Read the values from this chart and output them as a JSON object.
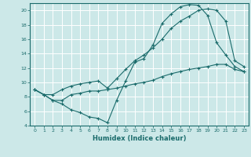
{
  "title": "",
  "xlabel": "Humidex (Indice chaleur)",
  "ylabel": "",
  "background_color": "#cce8e8",
  "grid_color": "#ffffff",
  "line_color": "#1a6b6b",
  "xlim": [
    -0.5,
    23.5
  ],
  "ylim": [
    4,
    21
  ],
  "yticks": [
    4,
    6,
    8,
    10,
    12,
    14,
    16,
    18,
    20
  ],
  "xticks": [
    0,
    1,
    2,
    3,
    4,
    5,
    6,
    7,
    8,
    9,
    10,
    11,
    12,
    13,
    14,
    15,
    16,
    17,
    18,
    19,
    20,
    21,
    22,
    23
  ],
  "line1_x": [
    0,
    1,
    2,
    3,
    4,
    5,
    6,
    7,
    8,
    9,
    10,
    11,
    12,
    13,
    14,
    15,
    16,
    17,
    18,
    19,
    20,
    21,
    22,
    23
  ],
  "line1_y": [
    9.0,
    8.3,
    7.5,
    7.0,
    6.2,
    5.8,
    5.2,
    5.0,
    4.4,
    7.5,
    10.2,
    12.8,
    13.3,
    15.2,
    18.2,
    19.5,
    20.5,
    20.8,
    20.7,
    19.3,
    15.5,
    13.8,
    12.2,
    11.5
  ],
  "line2_x": [
    0,
    1,
    2,
    3,
    4,
    5,
    6,
    7,
    8,
    9,
    10,
    11,
    12,
    13,
    14,
    15,
    16,
    17,
    18,
    19,
    20,
    21,
    22,
    23
  ],
  "line2_y": [
    9.0,
    8.3,
    7.5,
    7.5,
    8.3,
    8.5,
    8.8,
    8.8,
    9.0,
    9.2,
    9.5,
    9.8,
    10.0,
    10.3,
    10.8,
    11.2,
    11.5,
    11.8,
    12.0,
    12.2,
    12.5,
    12.5,
    11.8,
    11.5
  ],
  "line3_x": [
    0,
    1,
    2,
    3,
    4,
    5,
    6,
    7,
    8,
    9,
    10,
    11,
    12,
    13,
    14,
    15,
    16,
    17,
    18,
    19,
    20,
    21,
    22,
    23
  ],
  "line3_y": [
    9.0,
    8.3,
    8.3,
    9.0,
    9.5,
    9.8,
    10.0,
    10.2,
    9.2,
    10.5,
    11.8,
    13.0,
    13.8,
    14.8,
    16.0,
    17.5,
    18.5,
    19.2,
    20.0,
    20.2,
    20.0,
    18.5,
    13.0,
    12.2
  ],
  "xlabel_fontsize": 6,
  "tick_fontsize": 4.5,
  "linewidth": 0.8,
  "markersize": 2.5
}
